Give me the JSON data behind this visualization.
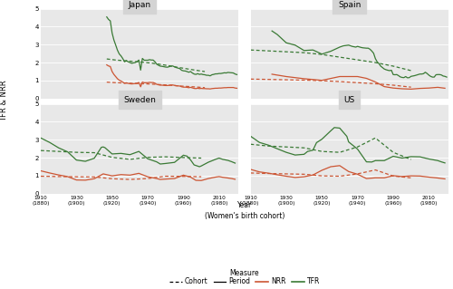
{
  "countries": [
    "Japan",
    "Spain",
    "Sweden",
    "US"
  ],
  "color_tfr": "#3a7a35",
  "color_nrr": "#cc5533",
  "panel_bg": "#e8e8e8",
  "title_bg": "#d4d4d4",
  "ylim": [
    0,
    5
  ],
  "yticks": [
    0,
    1,
    2,
    3,
    4,
    5
  ],
  "xlim": [
    1910,
    2021
  ],
  "xticks": [
    1910,
    1930,
    1950,
    1970,
    1990,
    2010
  ],
  "xticklabels_top": [
    "1910",
    "1930",
    "1950",
    "1970",
    "1990",
    "2010"
  ],
  "xticklabels_cohort": [
    "(1880)",
    "(1900)",
    "(1920)",
    "(1940)",
    "(1960)",
    "(1980)"
  ],
  "japan": {
    "p_tfr_x": [
      1947,
      1948,
      1949,
      1950,
      1951,
      1952,
      1953,
      1954,
      1955,
      1956,
      1957,
      1958,
      1959,
      1960,
      1961,
      1962,
      1963,
      1964,
      1965,
      1966,
      1967,
      1968,
      1969,
      1970,
      1971,
      1972,
      1973,
      1974,
      1975,
      1976,
      1977,
      1978,
      1979,
      1980,
      1981,
      1982,
      1983,
      1984,
      1985,
      1986,
      1987,
      1988,
      1989,
      1990,
      1991,
      1992,
      1993,
      1994,
      1995,
      1996,
      1997,
      1998,
      1999,
      2000,
      2001,
      2002,
      2003,
      2004,
      2005,
      2006,
      2007,
      2008,
      2009,
      2010,
      2011,
      2012,
      2013,
      2014,
      2015,
      2016,
      2017,
      2018,
      2019,
      2020
    ],
    "p_tfr_y": [
      4.54,
      4.4,
      4.32,
      3.65,
      3.26,
      2.98,
      2.69,
      2.48,
      2.37,
      2.22,
      2.04,
      2.11,
      2.04,
      2.0,
      1.96,
      1.98,
      2.0,
      2.05,
      2.14,
      1.58,
      2.23,
      2.13,
      2.13,
      2.13,
      2.16,
      2.14,
      2.14,
      2.05,
      1.91,
      1.85,
      1.8,
      1.79,
      1.77,
      1.75,
      1.74,
      1.77,
      1.8,
      1.81,
      1.76,
      1.72,
      1.69,
      1.66,
      1.57,
      1.54,
      1.53,
      1.5,
      1.46,
      1.5,
      1.42,
      1.36,
      1.34,
      1.38,
      1.34,
      1.36,
      1.33,
      1.32,
      1.29,
      1.29,
      1.26,
      1.32,
      1.34,
      1.37,
      1.37,
      1.39,
      1.39,
      1.41,
      1.43,
      1.42,
      1.45,
      1.44,
      1.43,
      1.42,
      1.36,
      1.33
    ],
    "p_nrr_x": [
      1947,
      1948,
      1949,
      1950,
      1951,
      1952,
      1953,
      1954,
      1955,
      1956,
      1957,
      1958,
      1959,
      1960,
      1961,
      1962,
      1963,
      1964,
      1965,
      1966,
      1967,
      1968,
      1969,
      1970,
      1971,
      1972,
      1973,
      1974,
      1975,
      1976,
      1977,
      1978,
      1979,
      1980,
      1981,
      1982,
      1983,
      1984,
      1985,
      1986,
      1987,
      1988,
      1989,
      1990,
      1991,
      1992,
      1993,
      1994,
      1995,
      1996,
      1997,
      1998,
      1999,
      2000,
      2001,
      2002,
      2003,
      2004,
      2005,
      2006,
      2007,
      2008,
      2009,
      2010,
      2011,
      2012,
      2013,
      2014,
      2015,
      2016,
      2017,
      2018,
      2019,
      2020
    ],
    "p_nrr_y": [
      1.87,
      1.81,
      1.78,
      1.5,
      1.34,
      1.22,
      1.1,
      1.02,
      0.97,
      0.91,
      0.84,
      0.87,
      0.84,
      0.82,
      0.81,
      0.82,
      0.83,
      0.85,
      0.89,
      0.65,
      0.92,
      0.88,
      0.88,
      0.88,
      0.9,
      0.89,
      0.89,
      0.85,
      0.79,
      0.76,
      0.74,
      0.74,
      0.73,
      0.72,
      0.72,
      0.73,
      0.75,
      0.75,
      0.73,
      0.71,
      0.7,
      0.69,
      0.65,
      0.63,
      0.63,
      0.62,
      0.6,
      0.62,
      0.59,
      0.56,
      0.55,
      0.57,
      0.55,
      0.56,
      0.55,
      0.55,
      0.54,
      0.54,
      0.53,
      0.55,
      0.56,
      0.57,
      0.57,
      0.58,
      0.58,
      0.59,
      0.6,
      0.6,
      0.61,
      0.61,
      0.61,
      0.61,
      0.58,
      0.57
    ],
    "c_tfr_x": [
      1917,
      1922,
      1927,
      1932,
      1937,
      1942,
      1947,
      1952,
      1957,
      1962,
      1967,
      1972
    ],
    "c_tfr_y": [
      2.2,
      2.14,
      2.1,
      2.06,
      2.02,
      1.97,
      1.9,
      1.82,
      1.73,
      1.65,
      1.57,
      1.5
    ],
    "c_nrr_x": [
      1917,
      1922,
      1927,
      1932,
      1937,
      1942,
      1947,
      1952,
      1957,
      1962,
      1967,
      1972
    ],
    "c_nrr_y": [
      0.91,
      0.88,
      0.86,
      0.84,
      0.82,
      0.8,
      0.77,
      0.74,
      0.7,
      0.67,
      0.64,
      0.6
    ]
  },
  "spain": {
    "p_tfr_x": [
      1922,
      1925,
      1930,
      1935,
      1940,
      1945,
      1950,
      1955,
      1960,
      1962,
      1965,
      1967,
      1969,
      1970,
      1971,
      1972,
      1973,
      1974,
      1975,
      1976,
      1977,
      1978,
      1979,
      1980,
      1981,
      1982,
      1983,
      1984,
      1985,
      1986,
      1987,
      1988,
      1989,
      1990,
      1991,
      1992,
      1993,
      1994,
      1995,
      1996,
      1997,
      1998,
      1999,
      2000,
      2001,
      2002,
      2003,
      2004,
      2005,
      2006,
      2007,
      2008,
      2009,
      2010,
      2011,
      2012,
      2013,
      2014,
      2015,
      2016,
      2017,
      2018,
      2019,
      2020
    ],
    "p_tfr_y": [
      3.76,
      3.56,
      3.1,
      2.97,
      2.67,
      2.7,
      2.47,
      2.63,
      2.86,
      2.93,
      2.97,
      2.9,
      2.86,
      2.9,
      2.87,
      2.84,
      2.82,
      2.81,
      2.8,
      2.8,
      2.74,
      2.64,
      2.52,
      2.22,
      2.04,
      1.94,
      1.8,
      1.72,
      1.64,
      1.6,
      1.57,
      1.55,
      1.57,
      1.33,
      1.32,
      1.33,
      1.27,
      1.2,
      1.17,
      1.16,
      1.22,
      1.15,
      1.16,
      1.23,
      1.25,
      1.27,
      1.3,
      1.33,
      1.36,
      1.36,
      1.38,
      1.46,
      1.39,
      1.3,
      1.23,
      1.19,
      1.19,
      1.32,
      1.33,
      1.33,
      1.31,
      1.25,
      1.23,
      1.19
    ],
    "p_nrr_x": [
      1922,
      1930,
      1940,
      1950,
      1960,
      1970,
      1975,
      1980,
      1985,
      1990,
      1995,
      2000,
      2005,
      2010,
      2015,
      2019
    ],
    "p_nrr_y": [
      1.35,
      1.22,
      1.1,
      1.01,
      1.22,
      1.22,
      1.12,
      0.92,
      0.66,
      0.58,
      0.54,
      0.52,
      0.56,
      0.58,
      0.62,
      0.57
    ],
    "c_tfr_x": [
      1880,
      1890,
      1900,
      1910,
      1920,
      1930,
      1940,
      1950,
      1960,
      1970
    ],
    "c_tfr_y": [
      2.7,
      2.65,
      2.6,
      2.55,
      2.45,
      2.3,
      2.15,
      2.0,
      1.8,
      1.55
    ],
    "c_nrr_x": [
      1880,
      1890,
      1900,
      1910,
      1920,
      1930,
      1940,
      1950,
      1960,
      1970
    ],
    "c_nrr_y": [
      1.08,
      1.06,
      1.04,
      1.02,
      0.99,
      0.94,
      0.88,
      0.82,
      0.74,
      0.63
    ]
  },
  "sweden": {
    "p_tfr_x": [
      1891,
      1895,
      1900,
      1905,
      1910,
      1915,
      1920,
      1925,
      1930,
      1935,
      1940,
      1944,
      1945,
      1946,
      1950,
      1955,
      1960,
      1965,
      1970,
      1975,
      1977,
      1980,
      1985,
      1990,
      1992,
      1994,
      1996,
      1999,
      2000,
      2004,
      2008,
      2010,
      2012,
      2015,
      2017,
      2019
    ],
    "p_tfr_y": [
      3.3,
      3.22,
      3.15,
      3.12,
      3.1,
      2.85,
      2.55,
      2.33,
      1.87,
      1.8,
      1.97,
      2.58,
      2.6,
      2.56,
      2.21,
      2.24,
      2.17,
      2.35,
      1.94,
      1.77,
      1.65,
      1.68,
      1.74,
      2.14,
      2.09,
      1.88,
      1.6,
      1.5,
      1.54,
      1.75,
      1.91,
      1.98,
      1.91,
      1.85,
      1.78,
      1.7
    ],
    "p_nrr_x": [
      1891,
      1895,
      1900,
      1905,
      1910,
      1915,
      1920,
      1925,
      1930,
      1935,
      1940,
      1945,
      1950,
      1955,
      1960,
      1965,
      1970,
      1975,
      1977,
      1980,
      1985,
      1990,
      1994,
      1997,
      2000,
      2004,
      2008,
      2010,
      2012,
      2015,
      2017,
      2019
    ],
    "p_nrr_y": [
      1.35,
      1.3,
      1.28,
      1.27,
      1.27,
      1.15,
      1.04,
      0.95,
      0.76,
      0.75,
      0.83,
      1.1,
      0.99,
      1.06,
      1.03,
      1.13,
      0.94,
      0.84,
      0.79,
      0.81,
      0.84,
      1.03,
      0.92,
      0.74,
      0.73,
      0.84,
      0.92,
      0.95,
      0.91,
      0.87,
      0.84,
      0.8
    ],
    "c_tfr_x": [
      1880,
      1890,
      1900,
      1910,
      1920,
      1930,
      1940,
      1950,
      1960,
      1970
    ],
    "c_tfr_y": [
      2.4,
      2.35,
      2.3,
      2.28,
      2.02,
      1.91,
      2.02,
      2.05,
      2.01,
      1.98
    ],
    "c_nrr_x": [
      1880,
      1890,
      1900,
      1910,
      1920,
      1930,
      1940,
      1950,
      1960,
      1970
    ],
    "c_nrr_y": [
      0.97,
      0.95,
      0.94,
      0.93,
      0.83,
      0.79,
      0.84,
      0.97,
      0.96,
      0.94
    ]
  },
  "us": {
    "p_tfr_x": [
      1910,
      1915,
      1920,
      1925,
      1930,
      1935,
      1940,
      1942,
      1945,
      1947,
      1950,
      1955,
      1957,
      1960,
      1964,
      1965,
      1970,
      1975,
      1978,
      1980,
      1985,
      1990,
      1995,
      2000,
      2005,
      2010,
      2015,
      2017,
      2019
    ],
    "p_tfr_y": [
      3.2,
      2.85,
      2.7,
      2.5,
      2.3,
      2.15,
      2.19,
      2.35,
      2.42,
      2.84,
      3.03,
      3.5,
      3.68,
      3.65,
      3.19,
      2.88,
      2.48,
      1.77,
      1.76,
      1.84,
      1.84,
      2.08,
      1.98,
      2.06,
      2.05,
      1.93,
      1.84,
      1.77,
      1.71
    ],
    "p_nrr_x": [
      1910,
      1915,
      1920,
      1925,
      1930,
      1935,
      1940,
      1945,
      1950,
      1955,
      1960,
      1965,
      1970,
      1975,
      1980,
      1985,
      1990,
      1995,
      2000,
      2005,
      2010,
      2015,
      2019
    ],
    "p_nrr_y": [
      1.35,
      1.21,
      1.14,
      1.05,
      0.97,
      0.9,
      0.94,
      1.04,
      1.3,
      1.5,
      1.56,
      1.23,
      1.08,
      0.84,
      0.88,
      0.88,
      1.0,
      0.95,
      0.99,
      0.98,
      0.92,
      0.87,
      0.82
    ],
    "c_tfr_x": [
      1880,
      1890,
      1900,
      1910,
      1920,
      1930,
      1940,
      1950,
      1960,
      1970
    ],
    "c_tfr_y": [
      2.75,
      2.65,
      2.6,
      2.55,
      2.35,
      2.3,
      2.6,
      3.1,
      2.3,
      1.9
    ],
    "c_nrr_x": [
      1880,
      1890,
      1900,
      1910,
      1920,
      1930,
      1940,
      1950,
      1960,
      1970
    ],
    "c_nrr_y": [
      1.15,
      1.12,
      1.1,
      1.08,
      0.99,
      0.97,
      1.1,
      1.32,
      0.98,
      0.88
    ]
  }
}
